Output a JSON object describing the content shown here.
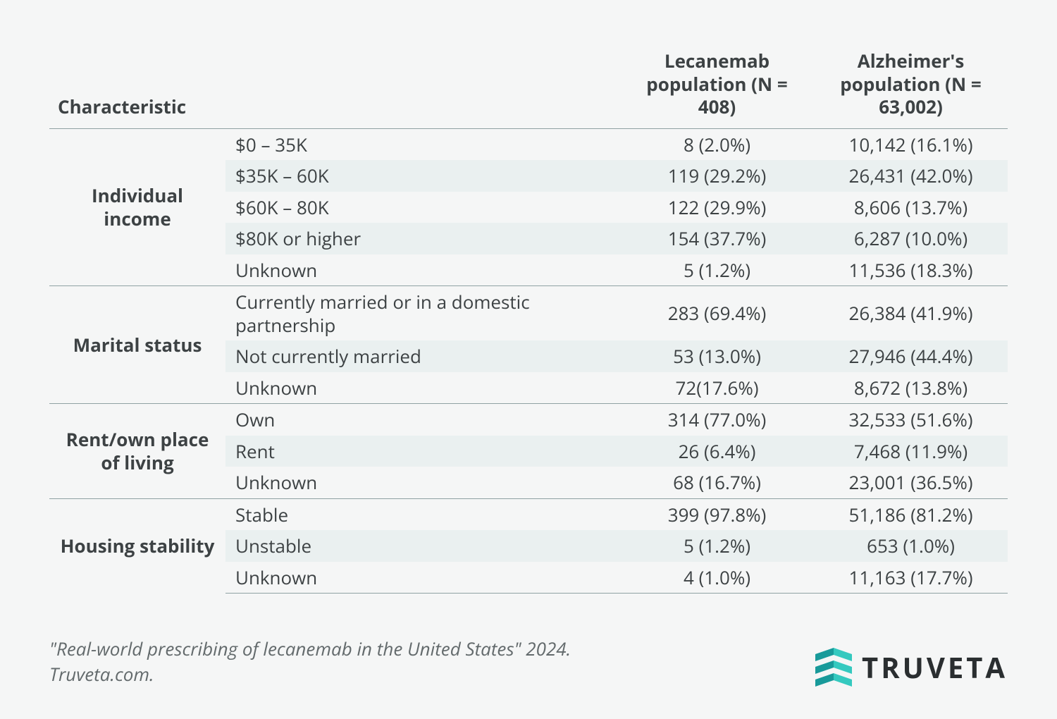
{
  "table": {
    "headers": {
      "characteristic": "Characteristic",
      "pop1": "Lecanemab population (N = 408)",
      "pop2": "Alzheimer's population (N = 63,002)"
    },
    "groups": [
      {
        "label": "Individual income",
        "rows": [
          {
            "sub": "$0 – 35K",
            "pop1": "8 (2.0%)",
            "pop2": "10,142 (16.1%)"
          },
          {
            "sub": "$35K – 60K",
            "pop1": "119 (29.2%)",
            "pop2": "26,431 (42.0%)"
          },
          {
            "sub": "$60K – 80K",
            "pop1": "122 (29.9%)",
            "pop2": "8,606 (13.7%)"
          },
          {
            "sub": "$80K or higher",
            "pop1": "154 (37.7%)",
            "pop2": "6,287 (10.0%)"
          },
          {
            "sub": "Unknown",
            "pop1": "5 (1.2%)",
            "pop2": "11,536 (18.3%)"
          }
        ]
      },
      {
        "label": "Marital status",
        "rows": [
          {
            "sub": "Currently married or in a domestic partnership",
            "pop1": "283 (69.4%)",
            "pop2": "26,384 (41.9%)"
          },
          {
            "sub": "Not currently married",
            "pop1": "53 (13.0%)",
            "pop2": "27,946 (44.4%)"
          },
          {
            "sub": "Unknown",
            "pop1": "72(17.6%)",
            "pop2": "8,672 (13.8%)"
          }
        ]
      },
      {
        "label": "Rent/own place of living",
        "rows": [
          {
            "sub": "Own",
            "pop1": "314 (77.0%)",
            "pop2": "32,533 (51.6%)"
          },
          {
            "sub": "Rent",
            "pop1": "26 (6.4%)",
            "pop2": "7,468 (11.9%)"
          },
          {
            "sub": "Unknown",
            "pop1": "68 (16.7%)",
            "pop2": "23,001 (36.5%)"
          }
        ]
      },
      {
        "label": "Housing stability",
        "rows": [
          {
            "sub": "Stable",
            "pop1": "399 (97.8%)",
            "pop2": "51,186 (81.2%)"
          },
          {
            "sub": "Unstable",
            "pop1": "5 (1.2%)",
            "pop2": "653 (1.0%)"
          },
          {
            "sub": "Unknown",
            "pop1": "4 (1.0%)",
            "pop2": "11,163 (17.7%)"
          }
        ]
      }
    ]
  },
  "footer": {
    "citation": "\"Real-world prescribing of lecanemab in the United States\" 2024. Truveta.com.",
    "brand": "TRUVETA"
  },
  "styling": {
    "background_color": "#f5f6f6",
    "stripe_color": "#eaf0f0",
    "border_color": "#8fa1a3",
    "text_color": "#3d4244",
    "citation_color": "#636a6c",
    "logo_color_dark": "#189a9a",
    "logo_color_light": "#34c9bf",
    "header_fontsize": 26,
    "body_fontsize": 26,
    "logo_fontsize": 40
  }
}
